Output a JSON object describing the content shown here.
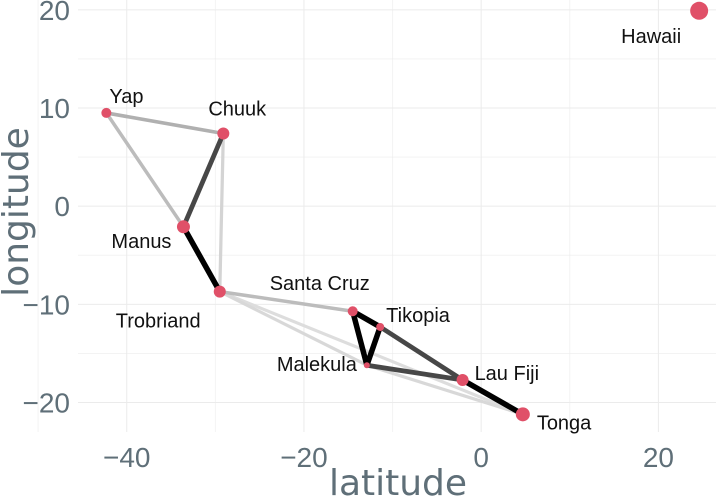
{
  "chart_data": {
    "type": "scatter",
    "xlabel": "latitude",
    "ylabel": "longitude",
    "xlim": [
      -45.5,
      26.5
    ],
    "ylim": [
      -23,
      21
    ],
    "grid": true,
    "x_ticks": [
      -40,
      -20,
      0,
      20
    ],
    "y_ticks": [
      -20,
      -10,
      0,
      10,
      20
    ],
    "x_tick_labels": [
      "−40",
      "−20",
      "0",
      "20"
    ],
    "y_tick_labels": [
      "−20",
      "−10",
      "0",
      "10",
      "20"
    ],
    "point_color": "#e05068",
    "points": [
      {
        "name": "Malekula",
        "x": -12.9,
        "y": -16.2,
        "size": 3
      },
      {
        "name": "Tikopia",
        "x": -11.4,
        "y": -12.3,
        "size": 4
      },
      {
        "name": "Santa Cruz",
        "x": -14.5,
        "y": -10.7,
        "size": 5
      },
      {
        "name": "Yap",
        "x": -42.3,
        "y": 9.5,
        "size": 5
      },
      {
        "name": "Lau Fiji",
        "x": -2.1,
        "y": -17.7,
        "size": 6
      },
      {
        "name": "Trobriand",
        "x": -29.5,
        "y": -8.7,
        "size": 6
      },
      {
        "name": "Chuuk",
        "x": -29.1,
        "y": 7.4,
        "size": 6
      },
      {
        "name": "Manus",
        "x": -33.6,
        "y": -2.1,
        "size": 6.5
      },
      {
        "name": "Tonga",
        "x": 4.7,
        "y": -21.2,
        "size": 7
      },
      {
        "name": "Hawaii",
        "x": 24.6,
        "y": 19.9,
        "size": 9
      }
    ],
    "links": [
      {
        "from": "Yap",
        "to": "Chuuk",
        "strength": 0.25
      },
      {
        "from": "Yap",
        "to": "Manus",
        "strength": 0.2
      },
      {
        "from": "Chuuk",
        "to": "Manus",
        "strength": 0.7
      },
      {
        "from": "Chuuk",
        "to": "Trobriand",
        "strength": 0.1
      },
      {
        "from": "Manus",
        "to": "Trobriand",
        "strength": 1.0
      },
      {
        "from": "Trobriand",
        "to": "Santa Cruz",
        "strength": 0.2
      },
      {
        "from": "Trobriand",
        "to": "Tonga",
        "strength": 0.06
      },
      {
        "from": "Trobriand",
        "to": "Malekula",
        "strength": 0.08
      },
      {
        "from": "Santa Cruz",
        "to": "Tikopia",
        "strength": 1.0
      },
      {
        "from": "Santa Cruz",
        "to": "Malekula",
        "strength": 1.0
      },
      {
        "from": "Tikopia",
        "to": "Malekula",
        "strength": 1.0
      },
      {
        "from": "Tikopia",
        "to": "Lau Fiji",
        "strength": 0.7
      },
      {
        "from": "Malekula",
        "to": "Lau Fiji",
        "strength": 0.7
      },
      {
        "from": "Malekula",
        "to": "Tonga",
        "strength": 0.08
      },
      {
        "from": "Lau Fiji",
        "to": "Tonga",
        "strength": 1.0
      }
    ]
  }
}
